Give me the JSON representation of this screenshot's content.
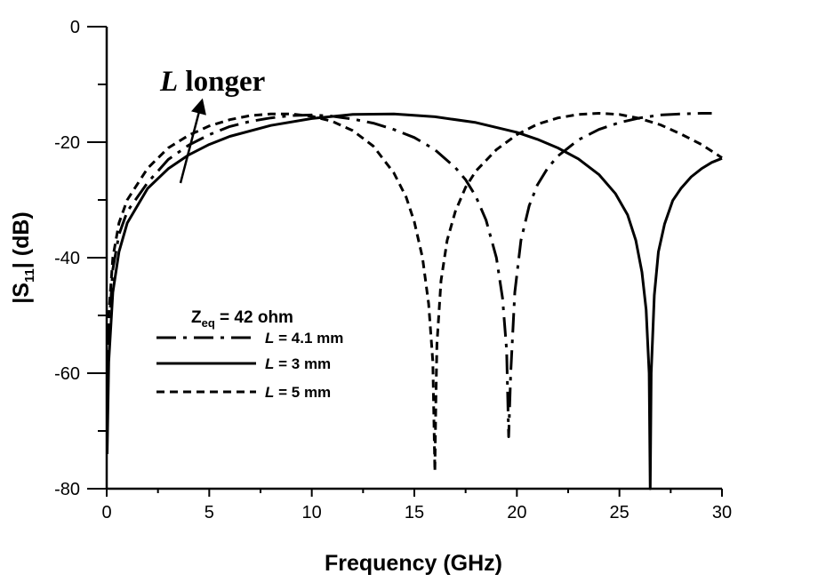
{
  "chart_data": {
    "type": "line",
    "title": "",
    "xlabel": "Frequency (GHz)",
    "ylabel": {
      "pre": "|S",
      "sub": "11",
      "post": "| (dB)"
    },
    "xlim": [
      0,
      30
    ],
    "ylim": [
      -80,
      0
    ],
    "xticks": [
      "0",
      "5",
      "10",
      "15",
      "20",
      "25",
      "30"
    ],
    "yticks": [
      "0",
      "-20",
      "-40",
      "-60",
      "-80"
    ],
    "grid": false,
    "legend_position": "center-left",
    "legend_title": {
      "pre": "Z",
      "sub": "eq",
      "post": " = 42 ohm"
    },
    "annotation": {
      "italic": "L",
      "text": " longer"
    },
    "series": [
      {
        "name": "L = 4.1 mm",
        "label_italic": "L",
        "label_rest": " = 4.1 mm",
        "dash": "dashdot",
        "x": [
          0.02,
          0.1,
          0.3,
          0.6,
          1,
          2,
          3,
          4,
          5,
          6,
          7,
          8,
          9,
          10,
          11,
          12,
          13,
          14,
          15,
          16,
          17,
          17.5,
          18,
          18.5,
          19,
          19.3,
          19.5,
          19.6,
          19.7,
          19.9,
          20.2,
          20.6,
          21,
          21.5,
          22,
          23,
          24,
          25,
          26,
          27,
          28,
          29,
          29.5
        ],
        "y": [
          -68,
          -53,
          -42,
          -36,
          -32,
          -27,
          -23,
          -20.5,
          -18.7,
          -17.3,
          -16.4,
          -15.8,
          -15.4,
          -15.3,
          -15.5,
          -16,
          -16.7,
          -17.8,
          -19.2,
          -21.3,
          -24.4,
          -26.5,
          -29.4,
          -33.5,
          -40,
          -47,
          -56,
          -71,
          -60,
          -46,
          -37,
          -31,
          -27.4,
          -24.5,
          -22.4,
          -19.6,
          -17.8,
          -16.6,
          -15.8,
          -15.3,
          -15.1,
          -15,
          -15
        ]
      },
      {
        "name": "L = 3 mm",
        "label_italic": "L",
        "label_rest": " = 3 mm",
        "dash": "solid",
        "x": [
          0.02,
          0.1,
          0.3,
          0.6,
          1,
          2,
          3,
          4,
          5,
          6,
          8,
          10,
          12,
          14,
          16,
          18,
          20,
          21,
          22,
          23,
          24,
          24.8,
          25.4,
          25.8,
          26.1,
          26.3,
          26.45,
          26.5,
          26.55,
          26.7,
          26.9,
          27.2,
          27.6,
          28,
          28.5,
          29,
          29.5,
          30
        ],
        "y": [
          -74,
          -58,
          -46,
          -39,
          -34,
          -28,
          -24.6,
          -22.2,
          -20.4,
          -19,
          -17.1,
          -15.9,
          -15.2,
          -15.1,
          -15.6,
          -16.6,
          -18.3,
          -19.5,
          -21,
          -22.9,
          -25.6,
          -28.9,
          -32.6,
          -37,
          -42.5,
          -49,
          -60,
          -80,
          -60,
          -46.5,
          -39,
          -34.2,
          -30.1,
          -28,
          -26,
          -24.6,
          -23.5,
          -22.8
        ]
      },
      {
        "name": "L = 5 mm",
        "label_italic": "L",
        "label_rest": " = 5 mm",
        "dash": "dashed",
        "x": [
          0.02,
          0.1,
          0.3,
          0.6,
          1,
          2,
          3,
          4,
          5,
          6,
          7,
          8,
          9,
          10,
          11,
          12,
          13,
          14,
          14.6,
          15,
          15.4,
          15.7,
          15.9,
          16,
          16.05,
          16.1,
          16.3,
          16.6,
          17,
          17.5,
          18,
          19,
          20,
          21,
          22,
          23,
          24,
          25,
          26,
          27,
          28,
          29,
          30
        ],
        "y": [
          -62,
          -50,
          -40,
          -34,
          -30,
          -24.5,
          -21,
          -18.8,
          -17.2,
          -16.1,
          -15.4,
          -15.1,
          -15.1,
          -15.5,
          -16.4,
          -18,
          -20.7,
          -25.3,
          -29.5,
          -33.8,
          -40,
          -48,
          -58,
          -77,
          -65,
          -55,
          -44,
          -37,
          -32,
          -27.8,
          -25,
          -21.3,
          -18.7,
          -16.9,
          -15.8,
          -15.2,
          -15,
          -15.2,
          -15.9,
          -17,
          -18.6,
          -20.4,
          -22.7
        ]
      }
    ]
  }
}
